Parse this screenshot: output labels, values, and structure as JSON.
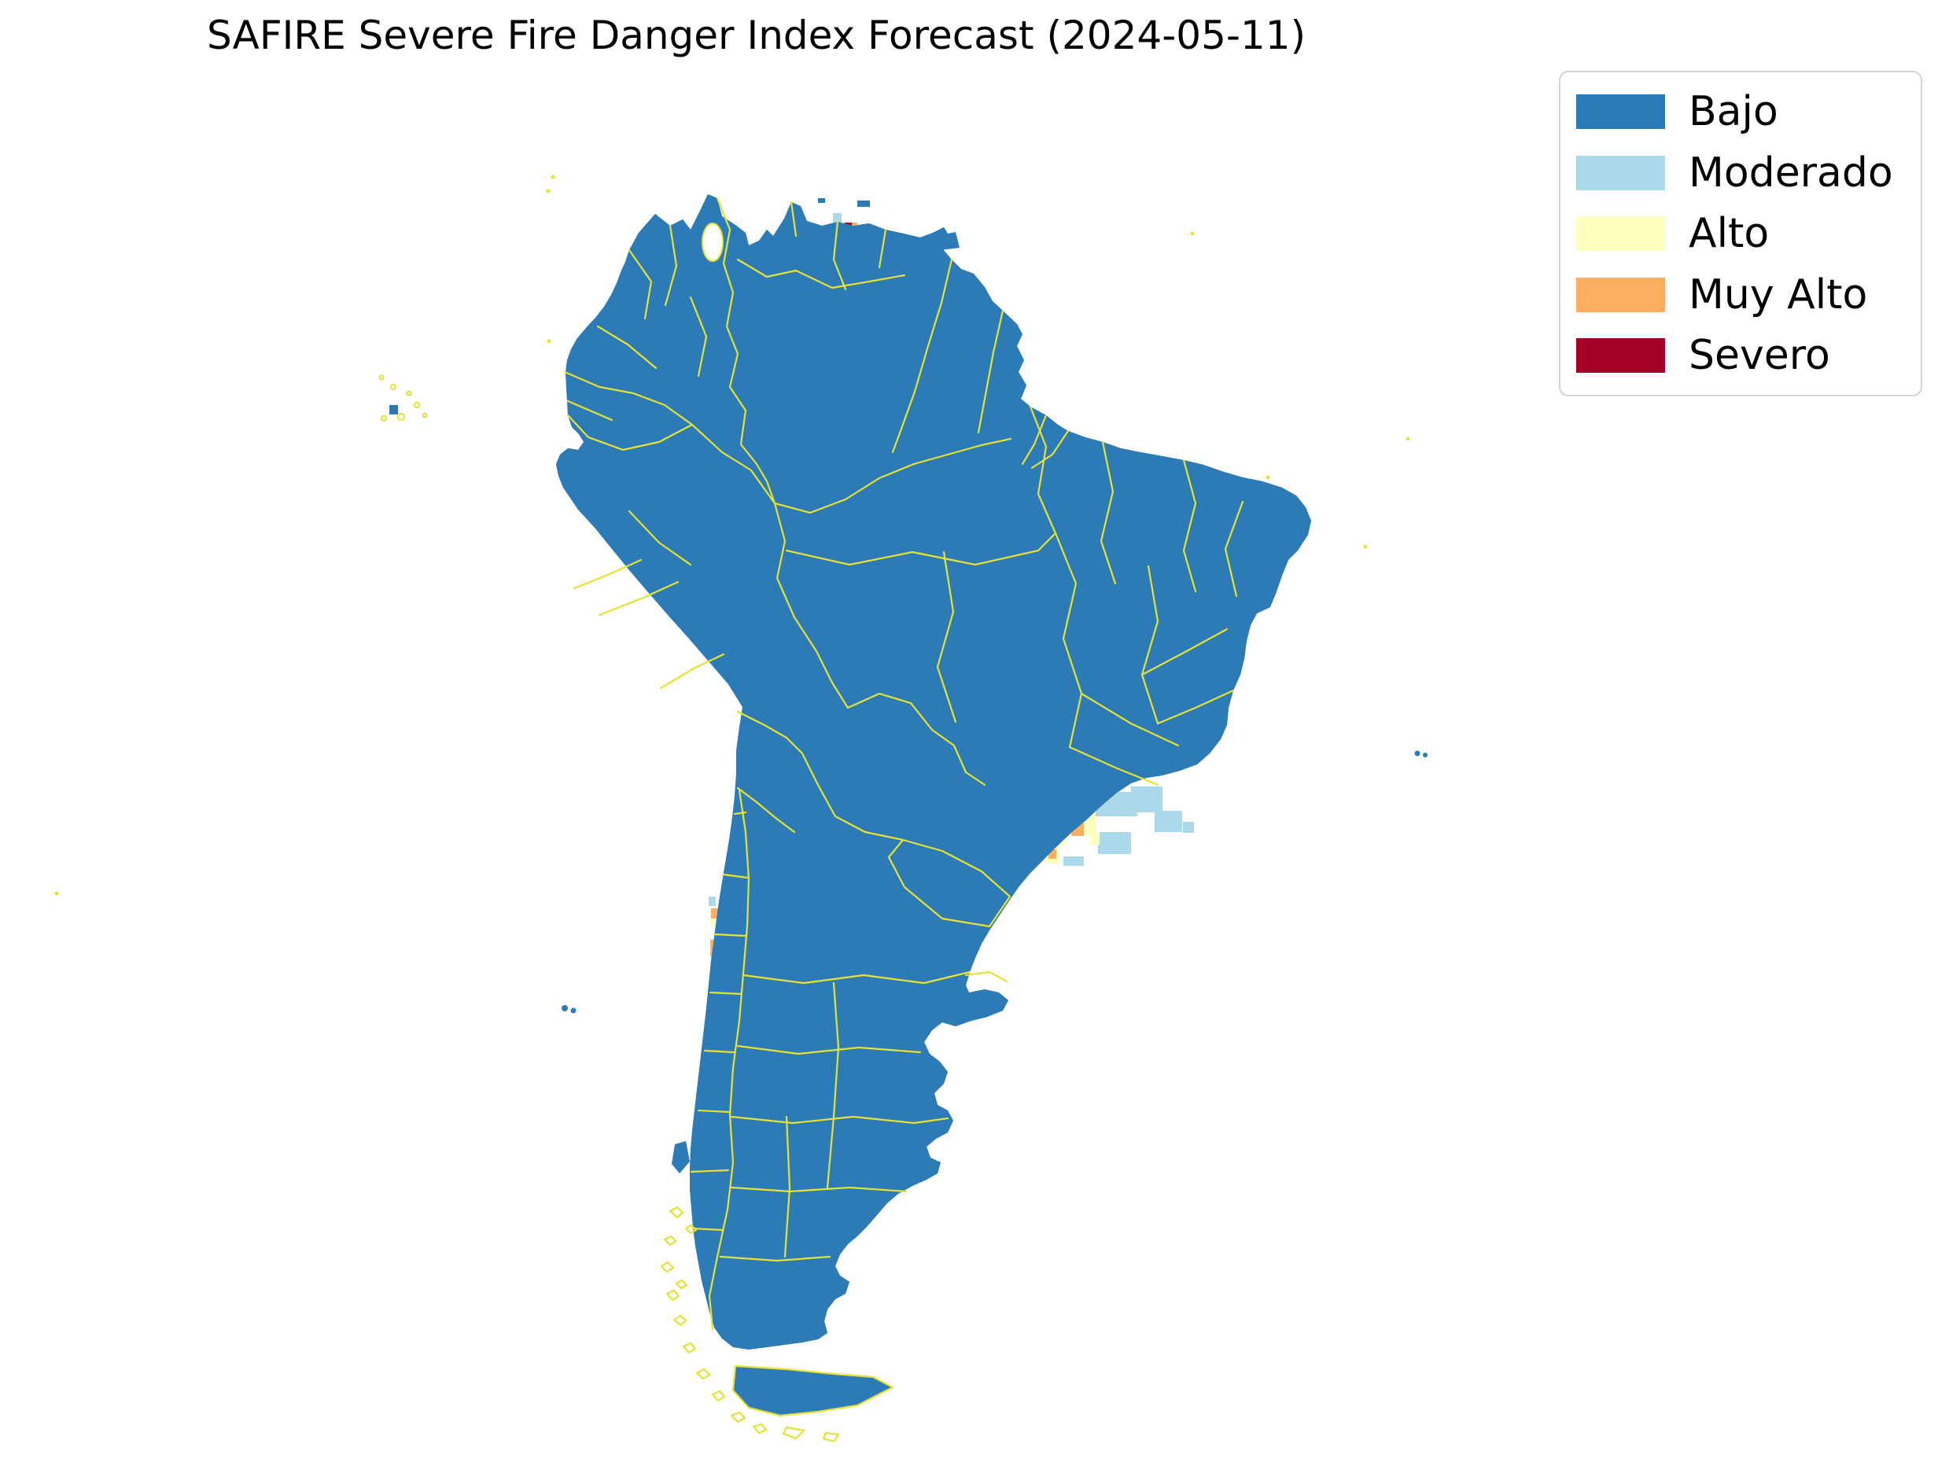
{
  "title": "SAFIRE Severe Fire Danger Index Forecast (2024-05-11)",
  "colors": {
    "bajo": "#2c7bb6",
    "moderado": "#abd9e9",
    "alto": "#ffffbf",
    "muy_alto": "#fdae61",
    "severo": "#a50026",
    "boundary": "#e5e234",
    "ocean": "#ffffff",
    "legend_border": "#d3d3d3",
    "text": "#000000"
  },
  "legend": {
    "items": [
      {
        "label": "Bajo",
        "level": "bajo"
      },
      {
        "label": "Moderado",
        "level": "moderado"
      },
      {
        "label": "Alto",
        "level": "alto"
      },
      {
        "label": "Muy Alto",
        "level": "muy_alto"
      },
      {
        "label": "Severo",
        "level": "severo"
      }
    ]
  },
  "map": {
    "hotspots": [
      {
        "region": "northeast-venezuela",
        "level": "moderado",
        "cells": [
          [
            1036,
            296,
            18,
            14
          ],
          [
            1059,
            271,
            11,
            14
          ],
          [
            1111,
            296,
            23,
            13
          ],
          [
            1115,
            309,
            19,
            24
          ],
          [
            1086,
            342,
            32,
            18
          ],
          [
            1095,
            360,
            15,
            7
          ],
          [
            1129,
            333,
            10,
            10
          ]
        ]
      },
      {
        "region": "northeast-venezuela",
        "level": "alto",
        "cells": [
          [
            1052,
            298,
            34,
            39
          ],
          [
            1088,
            331,
            23,
            11
          ],
          [
            1101,
            333,
            10,
            8
          ]
        ]
      },
      {
        "region": "northeast-venezuela",
        "level": "muy_alto",
        "cells": [
          [
            1084,
            299,
            29,
            34
          ],
          [
            1112,
            308,
            12,
            23
          ],
          [
            1082,
            283,
            8,
            10
          ]
        ]
      },
      {
        "region": "northeast-venezuela",
        "level": "severo",
        "cells": [
          [
            1074,
            283,
            9,
            10
          ]
        ]
      },
      {
        "region": "guyana-border",
        "level": "moderado",
        "cells": [
          [
            1275,
            446,
            9,
            9
          ]
        ]
      },
      {
        "region": "guyana-border",
        "level": "alto",
        "cells": [
          [
            1253,
            441,
            9,
            9
          ],
          [
            1264,
            452,
            9,
            9
          ]
        ]
      },
      {
        "region": "southeast-brazil-paraguay",
        "level": "moderado",
        "cells": [
          [
            1222,
            942,
            10,
            10
          ],
          [
            1211,
            964,
            36,
            19
          ],
          [
            1199,
            981,
            103,
            39
          ],
          [
            1204,
            1018,
            71,
            48
          ],
          [
            1219,
            1064,
            46,
            36
          ],
          [
            1265,
            1098,
            18,
            12
          ],
          [
            1298,
            997,
            85,
            37
          ],
          [
            1382,
            1007,
            64,
            31
          ],
          [
            1295,
            1032,
            26,
            34
          ],
          [
            1438,
            1000,
            40,
            33
          ],
          [
            1468,
            1031,
            35,
            27
          ],
          [
            1432,
            954,
            11,
            11
          ],
          [
            1504,
            1045,
            14,
            14
          ],
          [
            1352,
            1089,
            26,
            12
          ],
          [
            1396,
            1058,
            42,
            28
          ],
          [
            1460,
            941,
            10,
            10
          ]
        ]
      },
      {
        "region": "southeast-brazil-paraguay",
        "level": "alto",
        "cells": [
          [
            1266,
            1031,
            52,
            65
          ],
          [
            1318,
            1041,
            38,
            33
          ],
          [
            1352,
            1027,
            41,
            35
          ],
          [
            1234,
            1015,
            10,
            19
          ],
          [
            1330,
            1075,
            16,
            23
          ],
          [
            1386,
            1058,
            12,
            16
          ]
        ]
      },
      {
        "region": "southeast-brazil-paraguay",
        "level": "muy_alto",
        "cells": [
          [
            1362,
            1040,
            16,
            23
          ],
          [
            1333,
            1080,
            10,
            12
          ]
        ]
      },
      {
        "region": "andes-northwest-argentina",
        "level": "moderado",
        "cells": [
          [
            1008,
            968,
            40,
            18
          ],
          [
            1020,
            986,
            28,
            28
          ],
          [
            1016,
            1012,
            32,
            26
          ],
          [
            1024,
            1038,
            22,
            26
          ],
          [
            1000,
            1060,
            26,
            26
          ],
          [
            990,
            1082,
            24,
            28
          ],
          [
            976,
            1108,
            26,
            42
          ],
          [
            966,
            1148,
            24,
            32
          ],
          [
            1040,
            996,
            12,
            12
          ]
        ]
      },
      {
        "region": "andes-northwest-argentina",
        "level": "alto",
        "cells": [
          [
            988,
            1110,
            20,
            18
          ],
          [
            1014,
            1052,
            10,
            10
          ]
        ]
      },
      {
        "region": "atacama-chile",
        "level": "moderado",
        "cells": [
          [
            930,
            1040,
            12,
            25
          ],
          [
            934,
            1067,
            10,
            23
          ]
        ]
      },
      {
        "region": "central-chile-coast",
        "level": "moderado",
        "cells": [
          [
            901,
            1140,
            9,
            12
          ],
          [
            904,
            1214,
            10,
            18
          ],
          [
            905,
            1242,
            10,
            27
          ],
          [
            907,
            1272,
            9,
            12
          ]
        ]
      },
      {
        "region": "central-chile-coast",
        "level": "alto",
        "cells": [
          [
            903,
            1167,
            9,
            11
          ],
          [
            908,
            1186,
            8,
            8
          ]
        ]
      },
      {
        "region": "central-chile-coast",
        "level": "muy_alto",
        "cells": [
          [
            904,
            1155,
            10,
            13
          ],
          [
            903,
            1195,
            10,
            21
          ]
        ]
      },
      {
        "region": "central-chile-coast",
        "level": "severo",
        "cells": [
          [
            903,
            1231,
            10,
            12
          ]
        ]
      },
      {
        "region": "piura-peru",
        "level": "alto",
        "cells": [
          [
            711,
            592,
            10,
            10
          ]
        ]
      }
    ]
  }
}
